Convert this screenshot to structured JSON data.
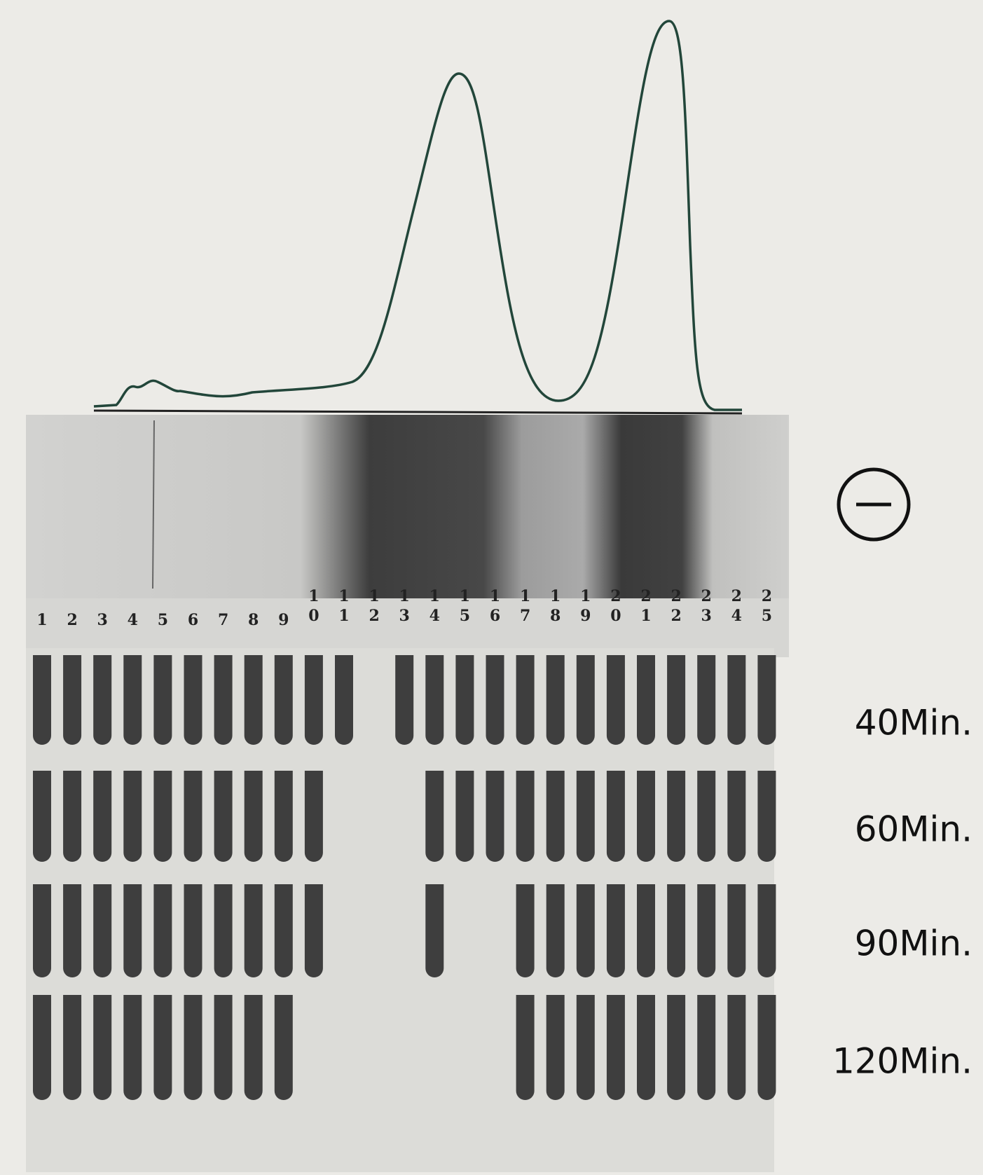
{
  "lane_numbers": [
    "1",
    "2",
    "3",
    "4",
    "5",
    "6",
    "7",
    "8",
    "9",
    "10",
    "11",
    "12",
    "13",
    "14",
    "15",
    "16",
    "17",
    "18",
    "19",
    "20",
    "21",
    "22",
    "23",
    "24",
    "25"
  ],
  "time_labels": [
    "40Min.",
    "60Min.",
    "90Min.",
    "120Min."
  ]
}
